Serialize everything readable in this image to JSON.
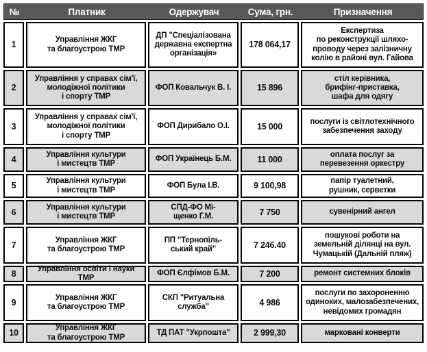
{
  "colors": {
    "header_bg": "#59595b",
    "header_text": "#ffffff",
    "row_bg": "#ffffff",
    "row_alt_bg": "#d9d9d9",
    "border": "#000000"
  },
  "chart_data": {
    "type": "table",
    "columns": [
      "№",
      "Платник",
      "Одержувач",
      "Сума, грн.",
      "Призначення"
    ],
    "rows": [
      {
        "num": "1",
        "payer": "Управління ЖКГ\nта благоустрою ТМР",
        "recipient": "ДП \"Спеціалізована\nдержавна експертна\nорганізація»",
        "amount": "178 064,17",
        "purpose": "Експертиза\nпо реконструкції шляхо-\nпроводу через залізничну\nколію в районі вул. Гайова"
      },
      {
        "num": "2",
        "payer": "Управління у справах сім'ї,\nмолодіжної політики\nі спорту ТМР",
        "recipient": "ФОП Ковальчук В. І.",
        "amount": "15 896",
        "purpose": "стіл керівника,\nбрифінг-приставка,\nшафа для одягу"
      },
      {
        "num": "3",
        "payer": "Управління у справах сім'ї,\nмолодіжної політики\nі спорту ТМР",
        "recipient": "ФОП Дирибало О.І.",
        "amount": "15 000",
        "purpose": "послуги із світлотехнічного\nзабезпечення заходу"
      },
      {
        "num": "4",
        "payer": "Управління культури\nі мистецтв ТМР",
        "recipient": "ФОП Українець Б.М.",
        "amount": "11 000",
        "purpose": "оплата послуг за\nперевезення оркестру"
      },
      {
        "num": "5",
        "payer": "Управління культури\nі мистецтв ТМР",
        "recipient": "ФОП Була І.В.",
        "amount": "9 100,98",
        "purpose": "папір туалетний,\nрушник, серветки"
      },
      {
        "num": "6",
        "payer": "Управління культури\nі мистецтв ТМР",
        "recipient": "СПД-ФО Мі-\nщенко Г.М.",
        "amount": "7 750",
        "purpose": "сувенірний ангел"
      },
      {
        "num": "7",
        "payer": "Управління ЖКГ\nта благоустрою ТМР",
        "recipient": "ПП \"Тернопіль-\nський край\"",
        "amount": "7 246.40",
        "purpose": "пошукові роботи на\nземельній ділянці на вул.\nЧумацькій (Дальній пляж)"
      },
      {
        "num": "8",
        "payer": "Управління освіти і науки ТМР",
        "recipient": "ФОП Єлфімов Б.М.",
        "amount": "7 200",
        "purpose": "ремонт системних блоків"
      },
      {
        "num": "9",
        "payer": "Управління ЖКГ\nта благоустрою ТМР",
        "recipient": "СКП \"Ритуальна\nслужба\"",
        "amount": "4 986",
        "purpose": "послуги по захороненню\nодиноких, малозабезпечених,\nневідомих громадян"
      },
      {
        "num": "10",
        "payer": "Управління ЖКГ\nта благоустрою ТМР",
        "recipient": "ТД ПАТ \"Укрпошта\"",
        "amount": "2 999,30",
        "purpose": "марковані конверти"
      }
    ]
  }
}
